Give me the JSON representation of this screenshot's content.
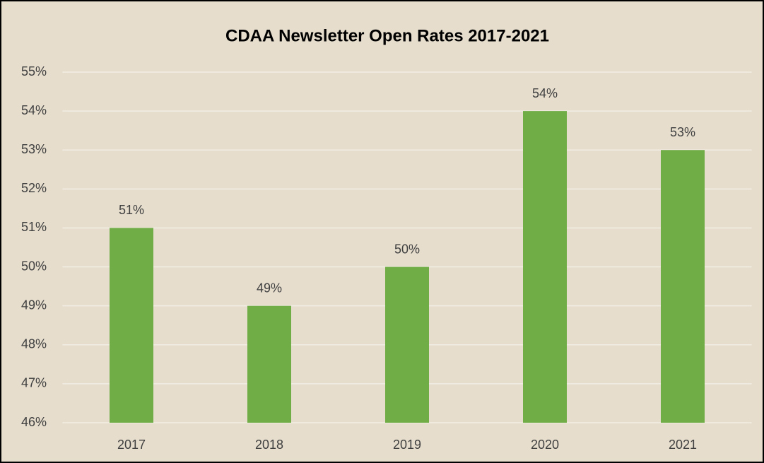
{
  "chart_data": {
    "type": "bar",
    "title": "CDAA Newsletter Open Rates 2017-2021",
    "categories": [
      "2017",
      "2018",
      "2019",
      "2020",
      "2021"
    ],
    "values": [
      51,
      49,
      50,
      54,
      53
    ],
    "value_labels": [
      "51%",
      "49%",
      "50%",
      "54%",
      "53%"
    ],
    "color": "#70ad47",
    "ylim": [
      46,
      55
    ],
    "yticks": [
      {
        "value": 46,
        "label": "46%"
      },
      {
        "value": 47,
        "label": "47%"
      },
      {
        "value": 48,
        "label": "48%"
      },
      {
        "value": 49,
        "label": "49%"
      },
      {
        "value": 50,
        "label": "50%"
      },
      {
        "value": 51,
        "label": "51%"
      },
      {
        "value": 52,
        "label": "52%"
      },
      {
        "value": 53,
        "label": "53%"
      },
      {
        "value": 54,
        "label": "54%"
      },
      {
        "value": 55,
        "label": "55%"
      }
    ],
    "grid": true
  }
}
